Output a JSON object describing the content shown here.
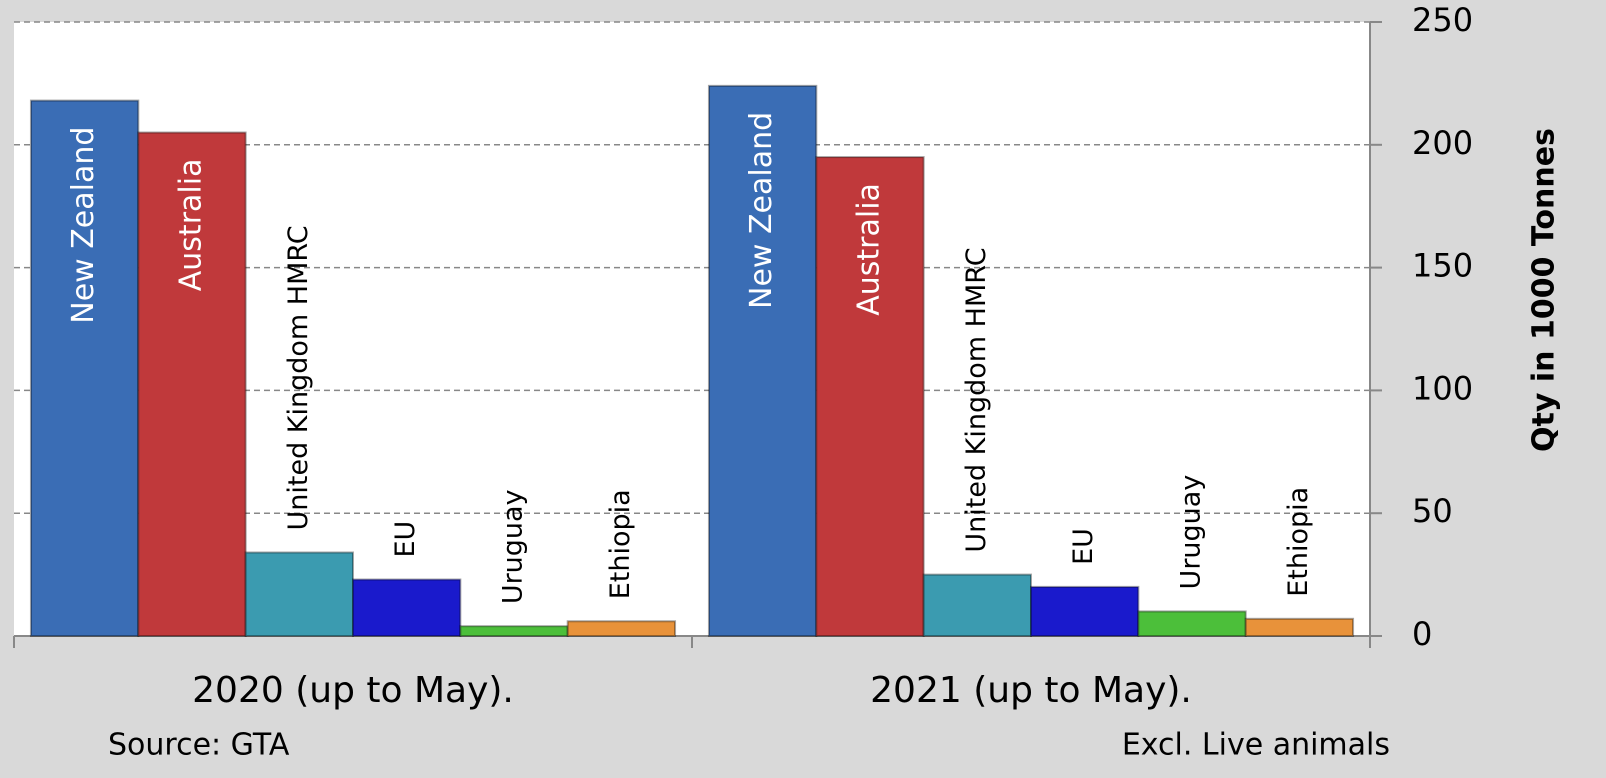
{
  "chart_data": {
    "type": "bar",
    "categories": [
      "2020 (up to May).",
      "2021 (up to May)."
    ],
    "series": [
      {
        "name": "New Zealand",
        "color": "#3a6db5",
        "values": [
          218,
          224
        ]
      },
      {
        "name": "Australia",
        "color": "#c0393b",
        "values": [
          205,
          195
        ]
      },
      {
        "name": "United Kingdom HMRC",
        "color": "#3b9bb0",
        "values": [
          34,
          25
        ]
      },
      {
        "name": "EU",
        "color": "#1a1acc",
        "values": [
          23,
          20
        ]
      },
      {
        "name": "Uruguay",
        "color": "#4cbf3a",
        "values": [
          4,
          10
        ]
      },
      {
        "name": "Ethiopia",
        "color": "#e8923a",
        "values": [
          6,
          7
        ]
      }
    ],
    "ylim": [
      0,
      250
    ],
    "yticks": [
      0,
      50,
      100,
      150,
      200,
      250
    ],
    "grid": true,
    "y_axis_label": "Qty in 1000 Tonnes",
    "source": "Source: GTA",
    "note": "Excl. Live animals"
  }
}
